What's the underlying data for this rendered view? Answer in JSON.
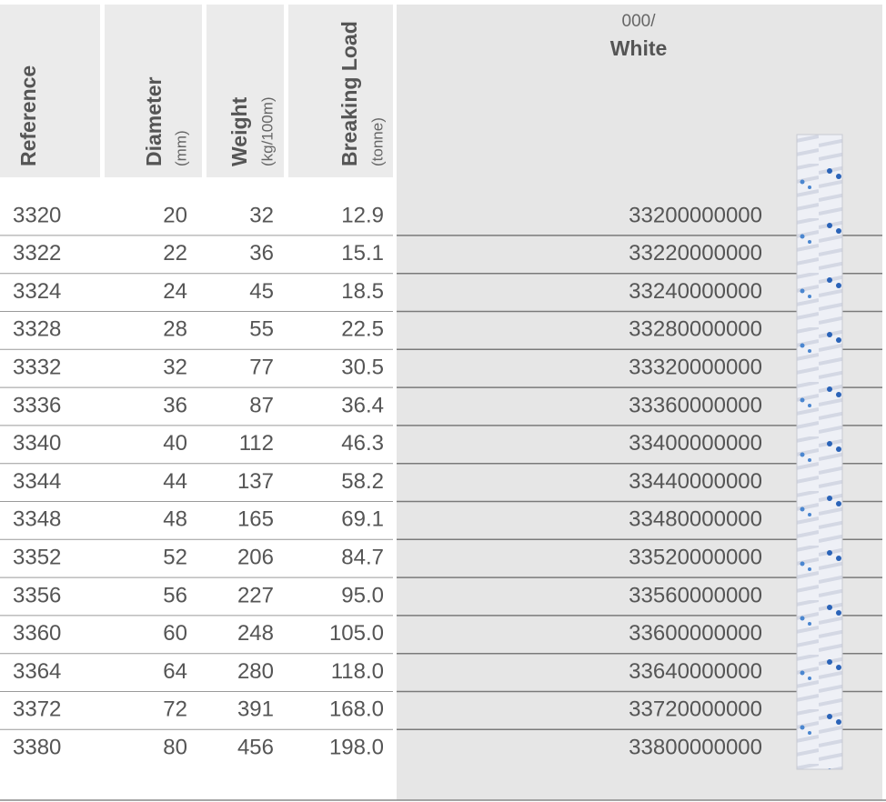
{
  "header": {
    "columns": [
      {
        "name": "Reference"
      },
      {
        "name": "Diameter",
        "unit": "(mm)"
      },
      {
        "name": "Weight",
        "unit": "(kg/100m)"
      },
      {
        "name": "Breaking Load",
        "unit": "(tonne)"
      }
    ],
    "color": {
      "code": "000/",
      "name": "White"
    }
  },
  "table": {
    "rows": [
      [
        "3320",
        "20",
        "32",
        "12.9",
        "33200000000"
      ],
      [
        "3322",
        "22",
        "36",
        "15.1",
        "33220000000"
      ],
      [
        "3324",
        "24",
        "45",
        "18.5",
        "33240000000"
      ],
      [
        "3328",
        "28",
        "55",
        "22.5",
        "33280000000"
      ],
      [
        "3332",
        "32",
        "77",
        "30.5",
        "33320000000"
      ],
      [
        "3336",
        "36",
        "87",
        "36.4",
        "33360000000"
      ],
      [
        "3340",
        "40",
        "112",
        "46.3",
        "33400000000"
      ],
      [
        "3344",
        "44",
        "137",
        "58.2",
        "33440000000"
      ],
      [
        "3348",
        "48",
        "165",
        "69.1",
        "33480000000"
      ],
      [
        "3352",
        "52",
        "206",
        "84.7",
        "33520000000"
      ],
      [
        "3356",
        "56",
        "227",
        "95.0",
        "33560000000"
      ],
      [
        "3360",
        "60",
        "248",
        "105.0",
        "33600000000"
      ],
      [
        "3364",
        "64",
        "280",
        "118.0",
        "33640000000"
      ],
      [
        "3372",
        "72",
        "391",
        "168.0",
        "33720000000"
      ],
      [
        "3380",
        "80",
        "456",
        "198.0",
        "33800000000"
      ]
    ]
  }
}
